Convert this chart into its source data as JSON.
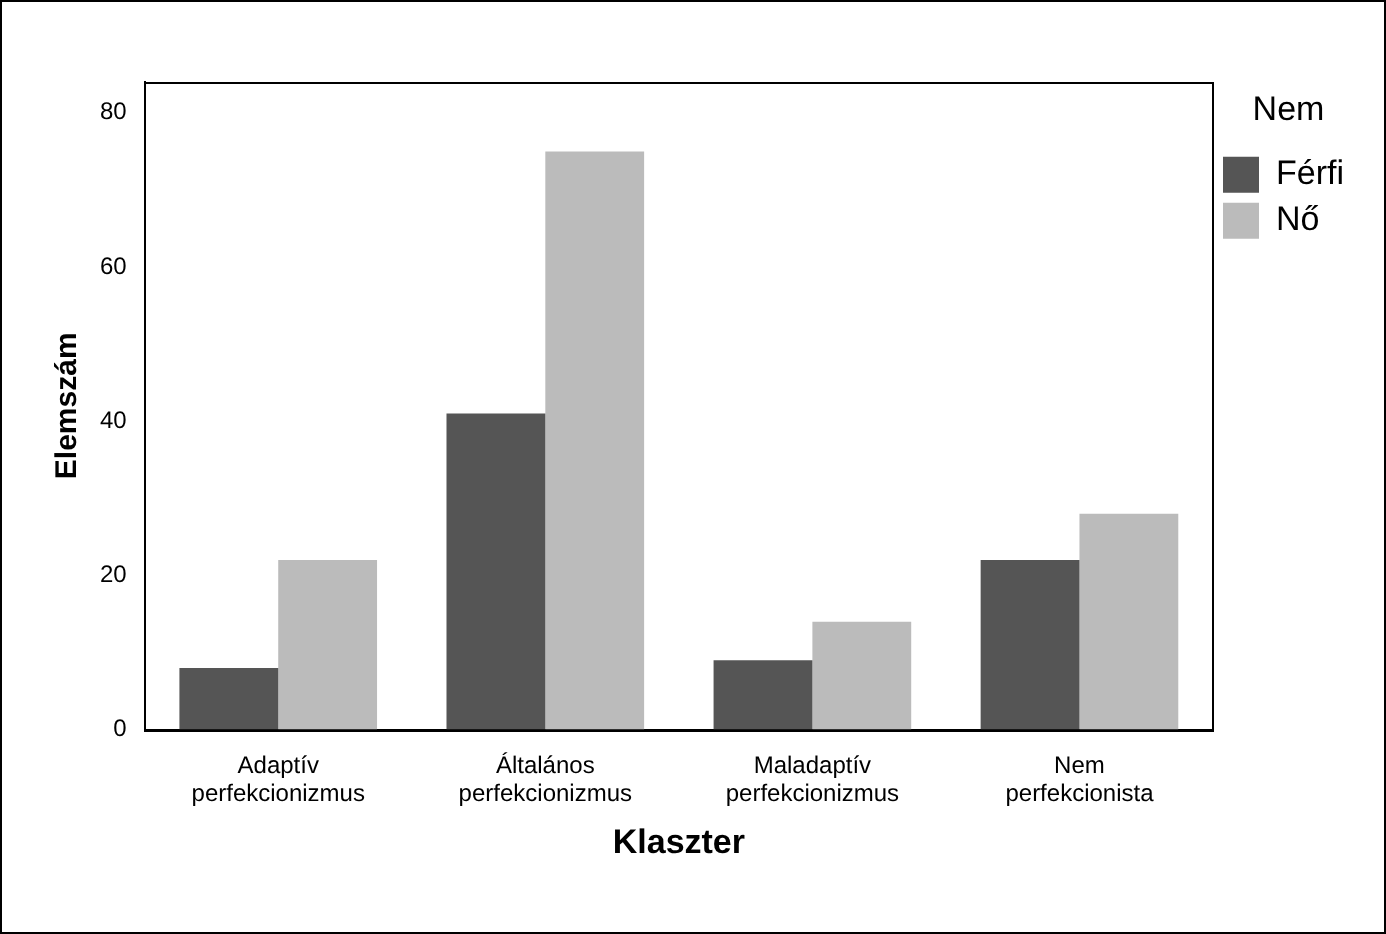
{
  "chart_data": {
    "type": "bar",
    "xlabel": "Klaszter",
    "ylabel": "Elemszám",
    "legend_title": "Nem",
    "legend": "top right",
    "grid": false,
    "categories": [
      "Adaptív perfekcionizmus",
      "Általános perfekcionizmus",
      "Maladaptív perfekcionizmus",
      "Nem perfekcionista"
    ],
    "series": [
      {
        "name": "Férfi",
        "color": "#555555",
        "values": [
          8,
          41,
          9,
          22
        ]
      },
      {
        "name": "Nő",
        "color": "#bbbbbb",
        "values": [
          22,
          75,
          14,
          28
        ]
      }
    ],
    "ylim": [
      0,
      84
    ],
    "yticks": [
      0,
      20,
      40,
      60,
      80
    ]
  }
}
